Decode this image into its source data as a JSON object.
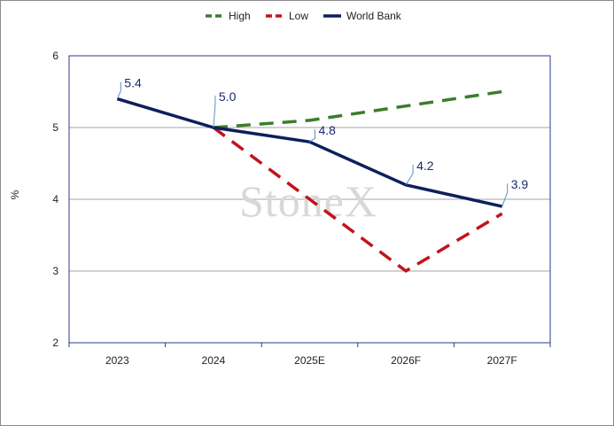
{
  "chart_data": {
    "type": "line",
    "categories": [
      "2023",
      "2024",
      "2025E",
      "2026F",
      "2027F"
    ],
    "ylabel": "%",
    "ylim": [
      2,
      6
    ],
    "yticks": [
      "2",
      "3",
      "4",
      "5",
      "6"
    ],
    "grid": "horizontal",
    "legend_position": "top-center",
    "series": [
      {
        "name": "High",
        "color": "#3b7d2c",
        "dash": true,
        "values": [
          null,
          5.0,
          5.1,
          5.3,
          5.5
        ]
      },
      {
        "name": "Low",
        "color": "#c0141c",
        "dash": true,
        "values": [
          null,
          5.0,
          4.0,
          3.0,
          3.8
        ]
      },
      {
        "name": "World Bank",
        "color": "#0d1f5c",
        "dash": false,
        "values": [
          5.4,
          5.0,
          4.8,
          4.2,
          3.9
        ]
      }
    ],
    "data_labels": [
      "5.4",
      "5.0",
      "4.8",
      "4.2",
      "3.9"
    ],
    "watermark": "StoneX"
  }
}
